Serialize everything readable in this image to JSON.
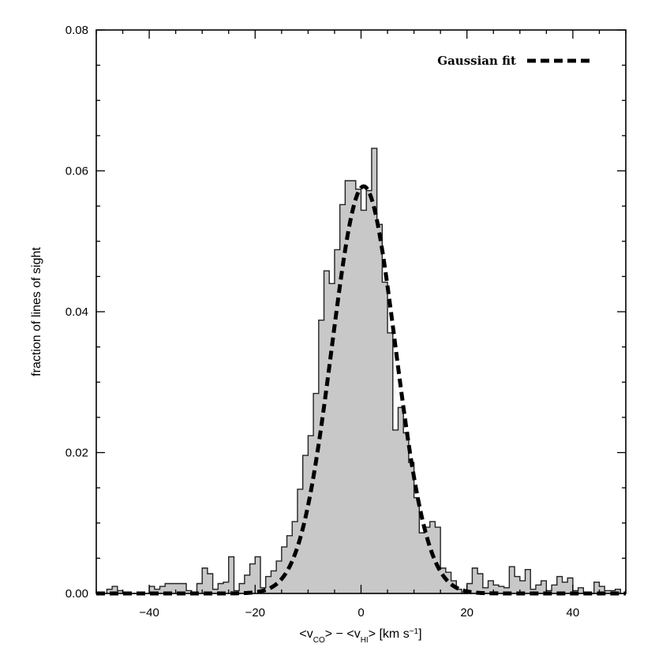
{
  "chart_data": {
    "type": "histogram",
    "title": "",
    "xlabel": {
      "prefix": "<v",
      "sub1": "CO",
      "middle": "> − <v",
      "sub2": "HI",
      "suffix_a": "> [km s",
      "sup": "−1",
      "suffix_b": "]"
    },
    "ylabel": "fraction of lines of sight",
    "xlim": [
      -50,
      50
    ],
    "ylim": [
      0,
      0.08
    ],
    "xticks": [
      -40,
      -20,
      0,
      20,
      40
    ],
    "xtick_labels": [
      "−40",
      "−20",
      "0",
      "20",
      "40"
    ],
    "yticks": [
      0,
      0.02,
      0.04,
      0.06,
      0.08
    ],
    "ytick_labels": [
      "0.00",
      "0.02",
      "0.04",
      "0.06",
      "0.08"
    ],
    "bin_width": 1,
    "bin_start": -50,
    "hist_values": [
      0.0,
      0.0,
      0.0006,
      0.001,
      0.0004,
      0.0,
      0.0,
      0.0,
      0.0,
      0.0,
      0.001,
      0.0006,
      0.001,
      0.0014,
      0.0014,
      0.0014,
      0.0014,
      0.0004,
      0.0,
      0.0014,
      0.0036,
      0.0028,
      0.0006,
      0.0014,
      0.0016,
      0.0052,
      0.0004,
      0.0014,
      0.0026,
      0.0042,
      0.0052,
      0.0008,
      0.0024,
      0.0032,
      0.0046,
      0.0066,
      0.0082,
      0.0102,
      0.0148,
      0.0196,
      0.0224,
      0.0284,
      0.0388,
      0.0458,
      0.044,
      0.0488,
      0.0552,
      0.0586,
      0.0586,
      0.0574,
      0.0544,
      0.0572,
      0.0632,
      0.0524,
      0.0442,
      0.037,
      0.0232,
      0.0264,
      0.0228,
      0.0186,
      0.0136,
      0.0086,
      0.0094,
      0.0102,
      0.0094,
      0.0036,
      0.003,
      0.0018,
      0.0006,
      0.0,
      0.0014,
      0.0036,
      0.0028,
      0.0008,
      0.0018,
      0.0012,
      0.001,
      0.0008,
      0.0038,
      0.0024,
      0.0018,
      0.0034,
      0.0006,
      0.0012,
      0.0018,
      0.0004,
      0.0012,
      0.0024,
      0.0016,
      0.0022,
      0.0004,
      0.0008,
      0.0,
      0.0,
      0.0016,
      0.001,
      0.0004,
      0.0004,
      0.0006,
      0.0
    ],
    "fit": {
      "type": "gaussian",
      "amplitude": 0.0578,
      "mean": 0.5,
      "sigma": 6.0
    },
    "legend": {
      "label": "Gaussian fit",
      "position": "top-right"
    },
    "colors": {
      "fill": "#c8c8c8",
      "outline": "#222222",
      "fit": "#000000"
    }
  }
}
